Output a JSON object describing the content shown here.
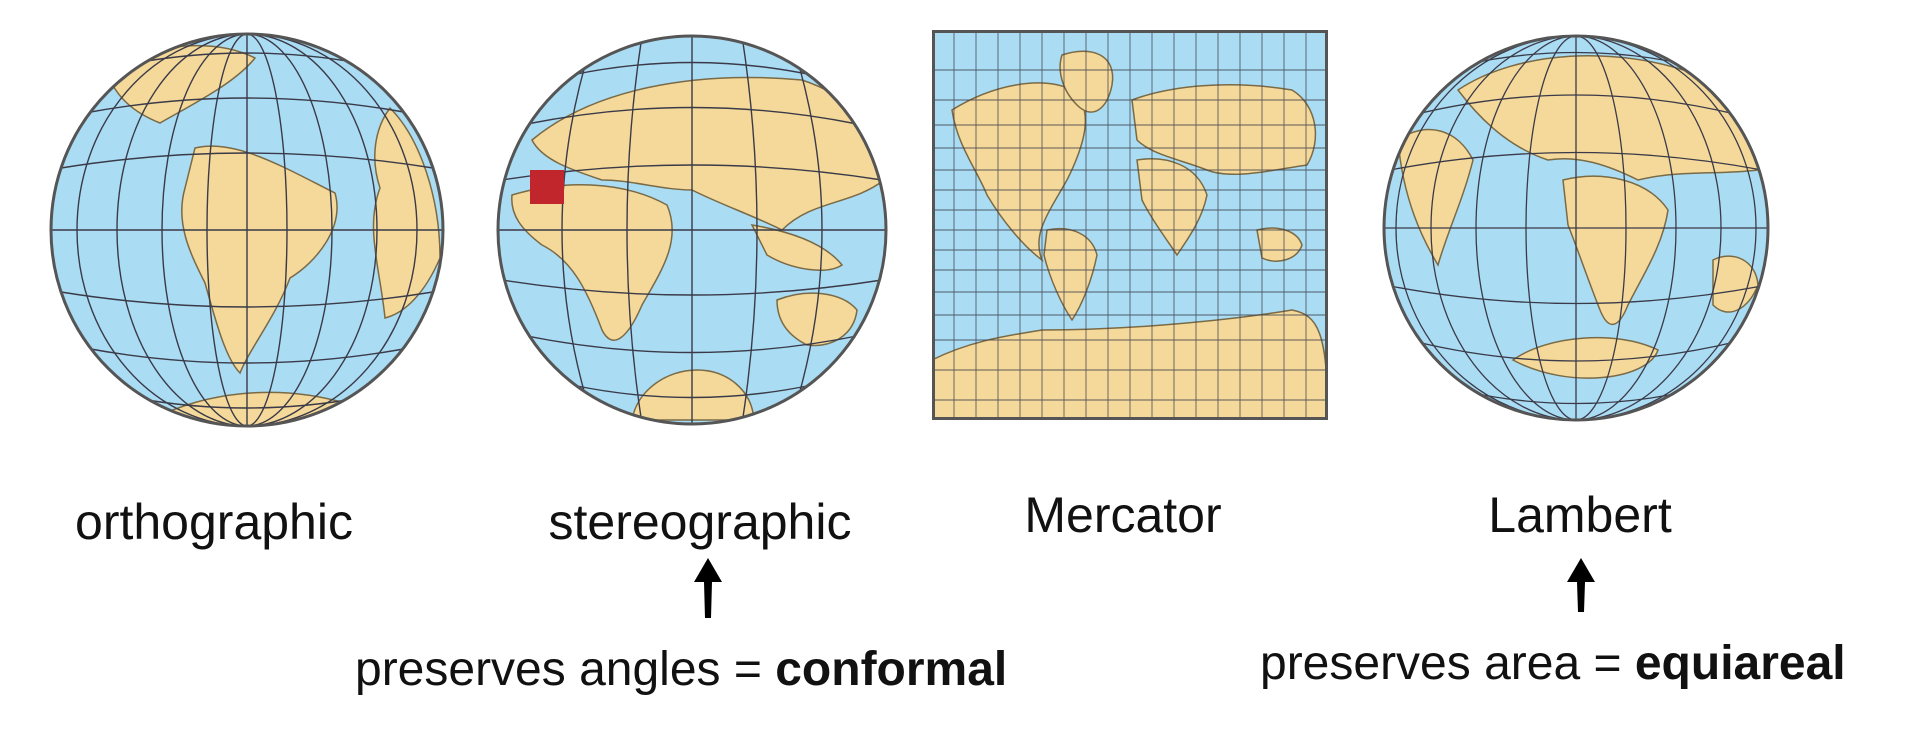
{
  "projections": [
    {
      "id": "orthographic",
      "label": "orthographic",
      "shape": "globe"
    },
    {
      "id": "stereographic",
      "label": "stereographic",
      "shape": "globe"
    },
    {
      "id": "mercator",
      "label": "Mercator",
      "shape": "rectangle"
    },
    {
      "id": "lambert",
      "label": "Lambert",
      "shape": "globe"
    }
  ],
  "annotations": {
    "conformal": {
      "text": "preserves angles = ",
      "bold": "conformal"
    },
    "equiareal": {
      "text": "preserves area = ",
      "bold": "equiareal"
    }
  },
  "colors": {
    "ocean": "#aadcf4",
    "land": "#f5d99a",
    "grid": "#3a3a48",
    "highlight": "#c0262b",
    "coast": "#7a6a45"
  }
}
